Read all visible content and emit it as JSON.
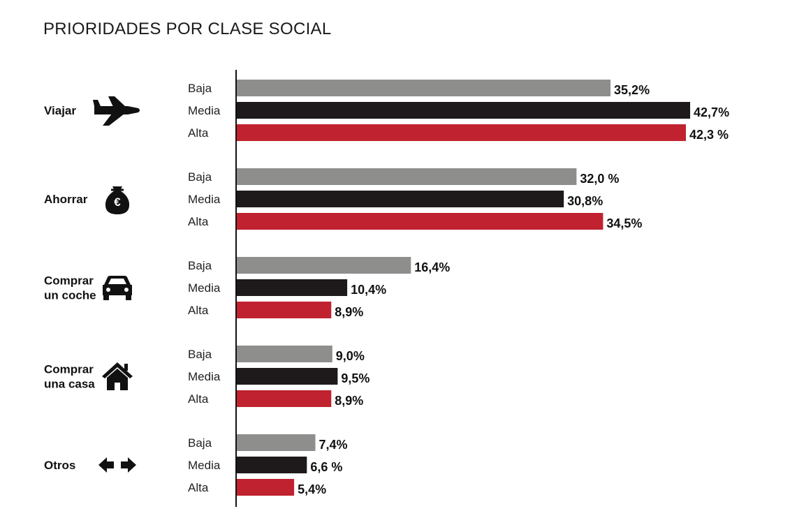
{
  "title": "PRIORIDADES POR CLASE SOCIAL",
  "chart_data": {
    "type": "bar",
    "orientation": "horizontal",
    "title": "PRIORIDADES POR CLASE SOCIAL",
    "xlabel": "",
    "ylabel": "",
    "xlim": [
      0,
      43.5
    ],
    "grid": false,
    "legend": "none",
    "levels": [
      "Baja",
      "Media",
      "Alta"
    ],
    "colors": {
      "Baja": "#8e8e8d",
      "Media": "#1e1a1b",
      "Alta": "#c0232f"
    },
    "categories": [
      {
        "name_lines": [
          "Viajar"
        ],
        "icon": "airplane-icon",
        "values": [
          35.2,
          42.7,
          42.3
        ],
        "value_labels": [
          "35,2%",
          "42,7%",
          "42,3 %"
        ]
      },
      {
        "name_lines": [
          "Ahorrar"
        ],
        "icon": "money-bag-euro-icon",
        "values": [
          32.0,
          30.8,
          34.5
        ],
        "value_labels": [
          "32,0 %",
          "30,8%",
          "34,5%"
        ]
      },
      {
        "name_lines": [
          "Comprar",
          "un coche"
        ],
        "icon": "car-icon",
        "values": [
          16.4,
          10.4,
          8.9
        ],
        "value_labels": [
          "16,4%",
          "10,4%",
          "8,9%"
        ]
      },
      {
        "name_lines": [
          "Comprar",
          "una casa"
        ],
        "icon": "house-icon",
        "values": [
          9.0,
          9.5,
          8.9
        ],
        "value_labels": [
          "9,0%",
          "9,5%",
          "8,9%"
        ]
      },
      {
        "name_lines": [
          "Otros"
        ],
        "icon": "left-right-arrows-icon",
        "values": [
          7.4,
          6.6,
          5.4
        ],
        "value_labels": [
          "7,4%",
          "6,6 %",
          "5,4%"
        ]
      }
    ]
  }
}
